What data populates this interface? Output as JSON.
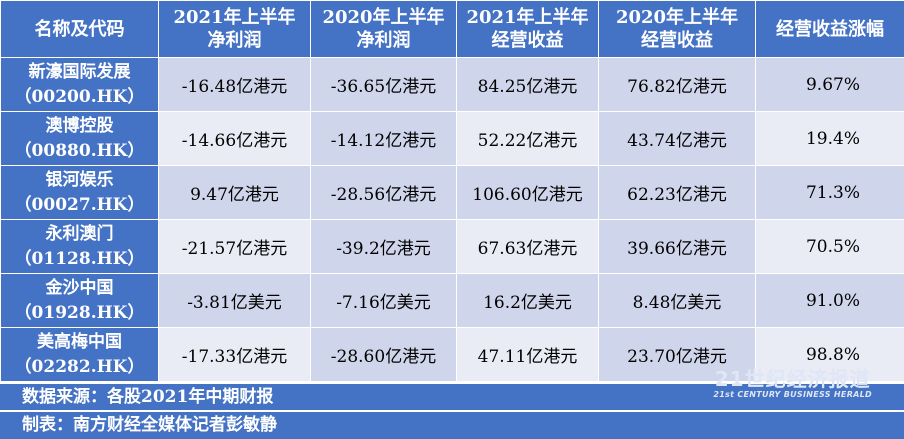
{
  "table": {
    "headers": [
      {
        "lines": [
          "名称及代码"
        ]
      },
      {
        "lines": [
          "2021年上半年",
          "净利润"
        ]
      },
      {
        "lines": [
          "2020年上半年",
          "净利润"
        ]
      },
      {
        "lines": [
          "2021年上半年",
          "经营收益"
        ]
      },
      {
        "lines": [
          "2020年上半年",
          "经营收益"
        ]
      },
      {
        "lines": [
          "经营收益涨幅"
        ]
      }
    ],
    "rows": [
      {
        "name": "新濠国际发展",
        "code": "（00200.HK）",
        "np2021": "-16.48亿港元",
        "np2020": "-36.65亿港元",
        "rev2021": "84.25亿港元",
        "rev2020": "76.82亿港元",
        "growth": "9.67%"
      },
      {
        "name": "澳博控股",
        "code": "（00880.HK）",
        "np2021": "-14.66亿港元",
        "np2020": "-14.12亿港元",
        "rev2021": "52.22亿港元",
        "rev2020": "43.74亿港元",
        "growth": "19.4%"
      },
      {
        "name": "银河娱乐",
        "code": "（00027.HK）",
        "np2021": "9.47亿港元",
        "np2020": "-28.56亿港元",
        "rev2021": "106.60亿港元",
        "rev2020": "62.23亿港元",
        "growth": "71.3%"
      },
      {
        "name": "永利澳门",
        "code": "（01128.HK）",
        "np2021": "-21.57亿港元",
        "np2020": "-39.2亿港元",
        "rev2021": "67.63亿港元",
        "rev2020": "39.66亿港元",
        "growth": "70.5%"
      },
      {
        "name": "金沙中国",
        "code": "（01928.HK）",
        "np2021": "-3.81亿美元",
        "np2020": "-7.16亿美元",
        "rev2021": "16.2亿美元",
        "rev2020": "8.48亿美元",
        "growth": "91.0%"
      },
      {
        "name": "美高梅中国",
        "code": "（02282.HK）",
        "np2021": "-17.33亿港元",
        "np2020": "-28.60亿港元",
        "rev2021": "47.11亿港元",
        "rev2020": "23.70亿港元",
        "growth": "98.8%"
      }
    ]
  },
  "footer": {
    "source": "数据来源：各股2021年中期财报",
    "author": "制表：南方财经全媒体记者彭敏静"
  },
  "watermark": {
    "cn": "21世纪经济报道",
    "en": "21st CENTURY BUSINESS HERALD"
  },
  "colors": {
    "header_bg": "#4472c4",
    "row_dark": "#cfd5ea",
    "row_light": "#e9ebf5",
    "text_white": "#ffffff"
  }
}
